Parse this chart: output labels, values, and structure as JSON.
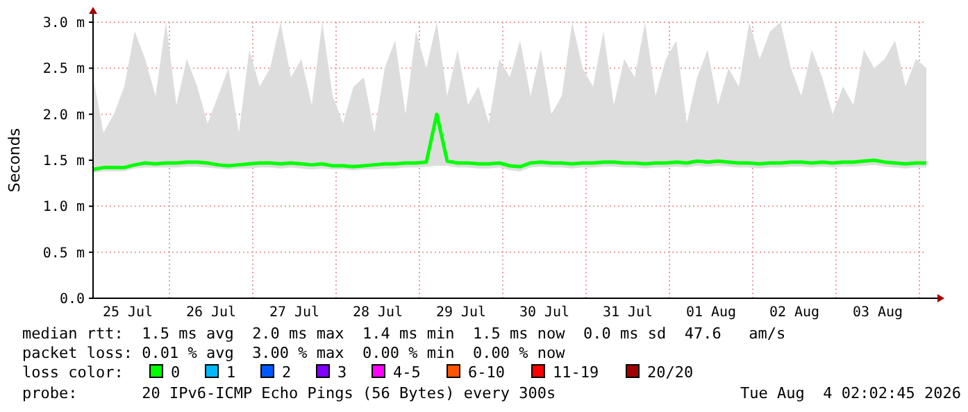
{
  "chart_data": {
    "type": "line",
    "ylabel": "Seconds",
    "legend_title": "loss color:",
    "legend": "bottom",
    "grid": true,
    "marker": "none",
    "line_style": "solid",
    "xlim": [
      "2026-07-25T02:00",
      "2026-08-04T02:00"
    ],
    "xticks": [
      {
        "value": "2026-07-25T12:00",
        "label": "25 Jul"
      },
      {
        "value": "2026-07-26T12:00",
        "label": "26 Jul"
      },
      {
        "value": "2026-07-27T12:00",
        "label": "27 Jul"
      },
      {
        "value": "2026-07-28T12:00",
        "label": "28 Jul"
      },
      {
        "value": "2026-07-29T12:00",
        "label": "29 Jul"
      },
      {
        "value": "2026-07-30T12:00",
        "label": "30 Jul"
      },
      {
        "value": "2026-07-31T12:00",
        "label": "31 Jul"
      },
      {
        "value": "2026-08-01T12:00",
        "label": "01 Aug"
      },
      {
        "value": "2026-08-02T12:00",
        "label": "02 Aug"
      },
      {
        "value": "2026-08-03T12:00",
        "label": "03 Aug"
      }
    ],
    "ylim": [
      0,
      3
    ],
    "yticks": [
      {
        "value": 0,
        "label": "0.0"
      },
      {
        "value": 0.5,
        "label": "0.5 m"
      },
      {
        "value": 1,
        "label": "1.0 m"
      },
      {
        "value": 1.5,
        "label": "1.5 m"
      },
      {
        "value": 2,
        "label": "2.0 m"
      },
      {
        "value": 2.5,
        "label": "2.5 m"
      },
      {
        "value": 3,
        "label": "3.0 m"
      }
    ],
    "series": [
      {
        "name": "0",
        "color": "#00ff00",
        "x": [
          "2026-07-25T02:00",
          "2026-07-25T05:00",
          "2026-07-25T08:00",
          "2026-07-25T11:00",
          "2026-07-25T14:00",
          "2026-07-25T17:00",
          "2026-07-25T20:00",
          "2026-07-25T23:00",
          "2026-07-26T02:00",
          "2026-07-26T05:00",
          "2026-07-26T08:00",
          "2026-07-26T11:00",
          "2026-07-26T14:00",
          "2026-07-26T17:00",
          "2026-07-26T20:00",
          "2026-07-26T23:00",
          "2026-07-27T02:00",
          "2026-07-27T05:00",
          "2026-07-27T08:00",
          "2026-07-27T11:00",
          "2026-07-27T14:00",
          "2026-07-27T17:00",
          "2026-07-27T20:00",
          "2026-07-27T23:00",
          "2026-07-28T02:00",
          "2026-07-28T05:00",
          "2026-07-28T08:00",
          "2026-07-28T11:00",
          "2026-07-28T14:00",
          "2026-07-28T17:00",
          "2026-07-28T20:00",
          "2026-07-28T23:00",
          "2026-07-29T02:00",
          "2026-07-29T05:00",
          "2026-07-29T08:00",
          "2026-07-29T11:00",
          "2026-07-29T14:00",
          "2026-07-29T17:00",
          "2026-07-29T20:00",
          "2026-07-29T23:00",
          "2026-07-30T02:00",
          "2026-07-30T05:00",
          "2026-07-30T08:00",
          "2026-07-30T11:00",
          "2026-07-30T14:00",
          "2026-07-30T17:00",
          "2026-07-30T20:00",
          "2026-07-30T23:00",
          "2026-07-31T02:00",
          "2026-07-31T05:00",
          "2026-07-31T08:00",
          "2026-07-31T11:00",
          "2026-07-31T14:00",
          "2026-07-31T17:00",
          "2026-07-31T20:00",
          "2026-07-31T23:00",
          "2026-08-01T02:00",
          "2026-08-01T05:00",
          "2026-08-01T08:00",
          "2026-08-01T11:00",
          "2026-08-01T14:00",
          "2026-08-01T17:00",
          "2026-08-01T20:00",
          "2026-08-01T23:00",
          "2026-08-02T02:00",
          "2026-08-02T05:00",
          "2026-08-02T08:00",
          "2026-08-02T11:00",
          "2026-08-02T14:00",
          "2026-08-02T17:00",
          "2026-08-02T20:00",
          "2026-08-02T23:00",
          "2026-08-03T02:00",
          "2026-08-03T05:00",
          "2026-08-03T08:00",
          "2026-08-03T11:00",
          "2026-08-03T14:00",
          "2026-08-03T17:00",
          "2026-08-03T20:00",
          "2026-08-03T23:00",
          "2026-08-04T02:00"
        ],
        "values": [
          1.4,
          1.42,
          1.42,
          1.42,
          1.45,
          1.47,
          1.46,
          1.47,
          1.47,
          1.48,
          1.48,
          1.47,
          1.45,
          1.44,
          1.45,
          1.46,
          1.47,
          1.47,
          1.46,
          1.47,
          1.46,
          1.45,
          1.46,
          1.44,
          1.44,
          1.43,
          1.44,
          1.45,
          1.46,
          1.46,
          1.47,
          1.47,
          1.48,
          2.0,
          1.49,
          1.47,
          1.47,
          1.46,
          1.46,
          1.47,
          1.44,
          1.43,
          1.47,
          1.48,
          1.47,
          1.47,
          1.46,
          1.47,
          1.47,
          1.48,
          1.48,
          1.47,
          1.47,
          1.46,
          1.47,
          1.47,
          1.48,
          1.47,
          1.49,
          1.48,
          1.49,
          1.48,
          1.47,
          1.47,
          1.46,
          1.47,
          1.47,
          1.48,
          1.48,
          1.47,
          1.48,
          1.47,
          1.48,
          1.48,
          1.49,
          1.5,
          1.48,
          1.47,
          1.46,
          1.47,
          1.47
        ],
        "lower": [
          1.36,
          1.38,
          1.38,
          1.38,
          1.41,
          1.42,
          1.42,
          1.42,
          1.42,
          1.43,
          1.43,
          1.42,
          1.41,
          1.4,
          1.41,
          1.41,
          1.42,
          1.42,
          1.41,
          1.42,
          1.41,
          1.4,
          1.41,
          1.4,
          1.4,
          1.39,
          1.4,
          1.4,
          1.41,
          1.41,
          1.42,
          1.42,
          1.43,
          1.44,
          1.44,
          1.42,
          1.42,
          1.41,
          1.41,
          1.42,
          1.39,
          1.38,
          1.42,
          1.43,
          1.42,
          1.42,
          1.41,
          1.42,
          1.42,
          1.43,
          1.43,
          1.42,
          1.42,
          1.41,
          1.42,
          1.42,
          1.43,
          1.42,
          1.44,
          1.43,
          1.44,
          1.43,
          1.42,
          1.42,
          1.41,
          1.42,
          1.42,
          1.43,
          1.43,
          1.42,
          1.43,
          1.42,
          1.43,
          1.43,
          1.44,
          1.45,
          1.43,
          1.42,
          1.41,
          1.42,
          1.42
        ],
        "upper": [
          2.4,
          1.8,
          2.0,
          2.3,
          2.9,
          2.6,
          2.2,
          3.0,
          2.1,
          2.6,
          2.3,
          1.9,
          2.2,
          2.5,
          1.8,
          2.7,
          2.3,
          2.5,
          3.0,
          2.4,
          2.6,
          2.1,
          3.0,
          2.2,
          1.9,
          2.3,
          2.4,
          1.8,
          2.5,
          2.8,
          2.0,
          2.9,
          2.5,
          3.0,
          2.2,
          2.7,
          2.1,
          2.3,
          1.9,
          2.6,
          2.4,
          2.8,
          2.2,
          2.7,
          2.0,
          2.2,
          3.0,
          2.5,
          2.3,
          2.9,
          2.1,
          2.6,
          2.4,
          3.0,
          2.2,
          2.6,
          2.8,
          1.9,
          2.4,
          2.7,
          2.1,
          2.5,
          2.3,
          3.0,
          2.6,
          2.9,
          3.0,
          2.5,
          2.2,
          2.7,
          2.4,
          2.0,
          2.3,
          2.1,
          2.7,
          2.5,
          2.6,
          2.8,
          2.3,
          2.6,
          2.5
        ]
      },
      {
        "name": "1",
        "color": "#00b8ff"
      },
      {
        "name": "2",
        "color": "#0059ff"
      },
      {
        "name": "3",
        "color": "#7e00ff"
      },
      {
        "name": "4-5",
        "color": "#ff00ff"
      },
      {
        "name": "6-10",
        "color": "#ff5500"
      },
      {
        "name": "11-19",
        "color": "#ff0000"
      },
      {
        "name": "20/20",
        "color": "#a10000"
      }
    ],
    "annotations": [
      "median rtt:  1.5 ms avg  2.0 ms max  1.4 ms min  1.5 ms now  0.0 ms sd  47.6   am/s",
      "packet loss: 0.01 % avg  3.00 % max  0.00 % min  0.00 % now",
      "probe:       20 IPv6-ICMP Echo Pings (56 Bytes) every 300s",
      "Tue Aug  4 02:02:45 2026"
    ]
  }
}
